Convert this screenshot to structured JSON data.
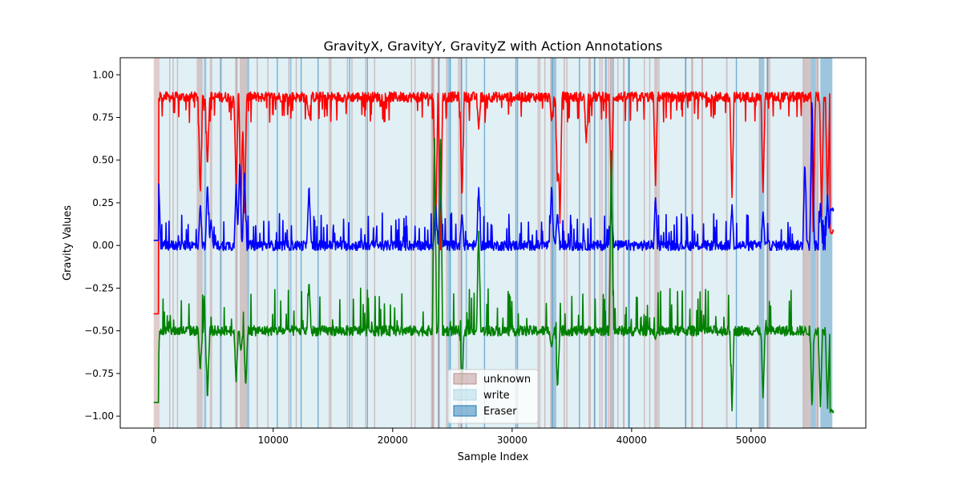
{
  "chart_data": {
    "type": "line",
    "title": "GravityX, GravityY, GravityZ with Action Annotations",
    "xlabel": "Sample Index",
    "ylabel": "Gravity Values",
    "xlim": [
      -2800,
      59600
    ],
    "ylim": [
      -1.07,
      1.1
    ],
    "x_ticks": [
      0,
      10000,
      20000,
      30000,
      40000,
      50000
    ],
    "y_ticks": [
      1.0,
      0.75,
      0.5,
      0.25,
      0.0,
      -0.25,
      -0.5,
      -0.75,
      -1.0
    ],
    "x_tick_labels": [
      "0",
      "10000",
      "20000",
      "30000",
      "40000",
      "50000"
    ],
    "y_tick_labels": [
      "1.00",
      "0.75",
      "0.50",
      "0.25",
      "0.00",
      "−0.25",
      "−0.50",
      "−0.75",
      "−1.00"
    ],
    "grid": false,
    "legend": {
      "position": "bottom-center",
      "entries": [
        {
          "label": "unknown",
          "color": "#bc8f8f"
        },
        {
          "label": "write",
          "color": "#add8e6"
        },
        {
          "label": "Eraser",
          "color": "#1f77b4"
        }
      ]
    },
    "series": [
      {
        "color": "#ff0000",
        "baseline": 0.87,
        "start_value": -0.4,
        "dips": [
          [
            3900,
            0.28
          ],
          [
            4500,
            0.45
          ],
          [
            6900,
            0.32
          ],
          [
            7300,
            0.2
          ],
          [
            7600,
            0.15
          ],
          [
            13000,
            0.75
          ],
          [
            23600,
            0.05
          ],
          [
            24000,
            -0.05
          ],
          [
            25800,
            0.25
          ],
          [
            27200,
            0.68
          ],
          [
            33300,
            0.72
          ],
          [
            33800,
            0.33
          ],
          [
            34000,
            0.12
          ],
          [
            36200,
            0.6
          ],
          [
            38300,
            0.3
          ],
          [
            42000,
            0.35
          ],
          [
            48400,
            0.28
          ],
          [
            51000,
            0.3
          ],
          [
            55200,
            0.05
          ],
          [
            55900,
            0.15
          ],
          [
            56400,
            0.22
          ]
        ],
        "end_value": 0.08
      },
      {
        "color": "#0000ff",
        "baseline": 0.0,
        "start_value": 0.03,
        "peaks": [
          [
            400,
            0.42
          ],
          [
            3900,
            0.25
          ],
          [
            4500,
            0.38
          ],
          [
            4800,
            0.15
          ],
          [
            6900,
            0.36
          ],
          [
            7200,
            0.52
          ],
          [
            7600,
            0.45
          ],
          [
            13000,
            0.37
          ],
          [
            23600,
            0.25
          ],
          [
            24000,
            0.35
          ],
          [
            25800,
            0.2
          ],
          [
            27200,
            0.35
          ],
          [
            33300,
            0.37
          ],
          [
            33800,
            0.2
          ],
          [
            38300,
            0.25
          ],
          [
            42000,
            0.28
          ],
          [
            48400,
            0.24
          ],
          [
            51000,
            0.2
          ],
          [
            54500,
            0.5
          ],
          [
            55100,
            0.9
          ],
          [
            55800,
            0.25
          ],
          [
            56400,
            0.3
          ]
        ],
        "end_value": 0.21
      },
      {
        "color": "#008000",
        "baseline": -0.5,
        "start_value": -0.92,
        "extremes": [
          [
            300,
            -0.95
          ],
          [
            3900,
            -0.75
          ],
          [
            4500,
            -0.92
          ],
          [
            6900,
            -0.8
          ],
          [
            7300,
            -0.62
          ],
          [
            7700,
            -0.84
          ],
          [
            13000,
            -0.2
          ],
          [
            23500,
            0.67
          ],
          [
            24000,
            0.65
          ],
          [
            25800,
            -0.85
          ],
          [
            27200,
            0.1
          ],
          [
            33300,
            -0.6
          ],
          [
            33800,
            -0.85
          ],
          [
            38300,
            0.56
          ],
          [
            42000,
            -0.55
          ],
          [
            48400,
            -0.97
          ],
          [
            51000,
            -0.9
          ],
          [
            55100,
            -0.97
          ],
          [
            55800,
            -0.95
          ],
          [
            56400,
            -0.96
          ]
        ],
        "end_value": -0.97
      }
    ],
    "annotations": {
      "unknown": [
        [
          0,
          500
        ],
        [
          3600,
          4100
        ],
        [
          4700,
          4900
        ],
        [
          6800,
          7000
        ],
        [
          7200,
          7800
        ],
        [
          8600,
          8700
        ],
        [
          23200,
          23500
        ],
        [
          25600,
          25800
        ],
        [
          33200,
          33300
        ],
        [
          34300,
          34400
        ],
        [
          38200,
          38300
        ],
        [
          41900,
          42200
        ],
        [
          47900,
          48000
        ],
        [
          51300,
          51600
        ],
        [
          54400,
          55000
        ],
        [
          55400,
          55600
        ]
      ],
      "Eraser": [
        [
          4200,
          4400
        ],
        [
          7800,
          8000
        ],
        [
          11400,
          11500
        ],
        [
          24600,
          24800
        ],
        [
          26100,
          26200
        ],
        [
          33400,
          33700
        ],
        [
          38400,
          38500
        ],
        [
          50700,
          51100
        ],
        [
          55000,
          55400
        ],
        [
          55800,
          56800
        ]
      ],
      "write_range": [
        500,
        56800
      ]
    }
  }
}
